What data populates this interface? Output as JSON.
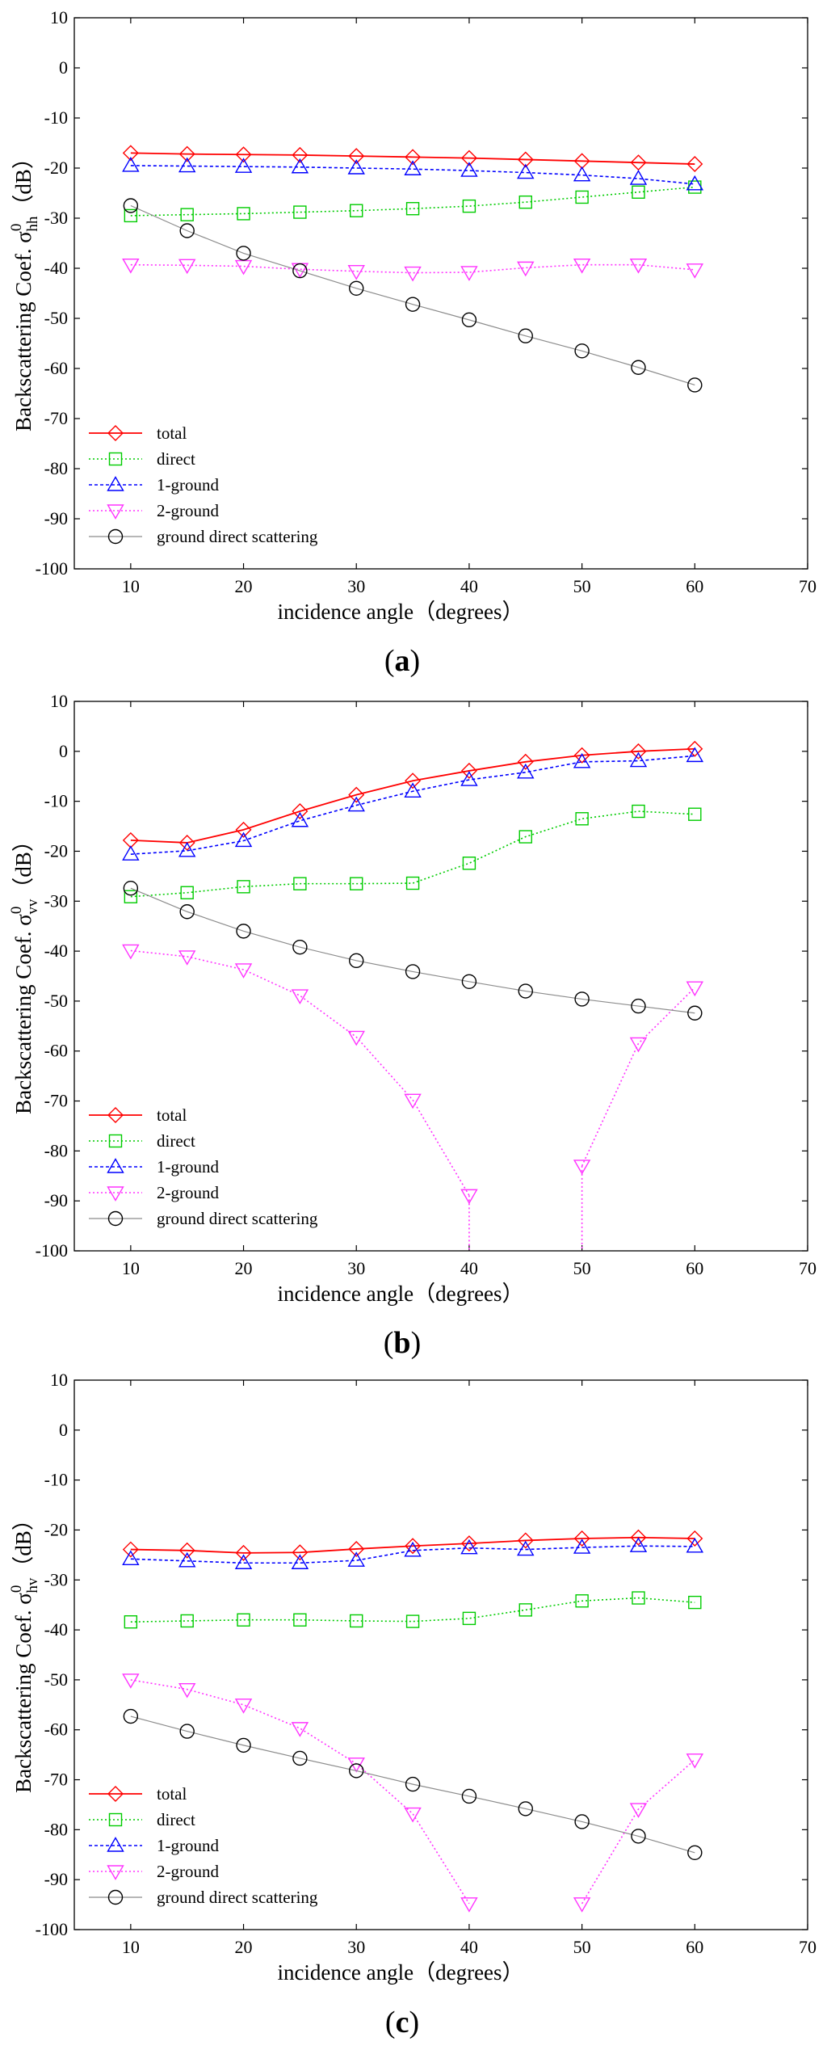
{
  "figure": {
    "panel_labels": [
      "a",
      "b",
      "c"
    ],
    "panel_label_open": "(",
    "panel_label_close": ")"
  },
  "chart_data": [
    {
      "type": "line",
      "panel": "a",
      "xlabel": "incidence angle（degrees）",
      "ylabel_prefix": "Backscattering Coef. σ",
      "ylabel_sup": "0",
      "ylabel_sub": "hh",
      "ylabel_suffix": "（dB）",
      "xlim": [
        5,
        70
      ],
      "ylim": [
        -100,
        10
      ],
      "xticks": [
        10,
        20,
        30,
        40,
        50,
        60,
        70
      ],
      "yticks": [
        10,
        0,
        -10,
        -20,
        -30,
        -40,
        -50,
        -60,
        -70,
        -80,
        -90,
        -100
      ],
      "legend_position": "lower-left",
      "x": [
        10,
        15,
        20,
        25,
        30,
        35,
        40,
        45,
        50,
        55,
        60
      ],
      "series": [
        {
          "name": "total",
          "color": "#ff0000",
          "marker": "diamond",
          "dash": "solid",
          "values": [
            -17,
            -17.2,
            -17.3,
            -17.4,
            -17.6,
            -17.8,
            -18,
            -18.3,
            -18.6,
            -18.9,
            -19.2
          ]
        },
        {
          "name": "direct",
          "color": "#00cc00",
          "marker": "square",
          "dash": "dotted",
          "values": [
            -29.5,
            -29.3,
            -29.1,
            -28.8,
            -28.5,
            -28.1,
            -27.6,
            -26.8,
            -25.8,
            -24.8,
            -23.8
          ]
        },
        {
          "name": "1-ground",
          "color": "#0000ff",
          "marker": "triangle-up",
          "dash": "dashed",
          "values": [
            -19.5,
            -19.6,
            -19.7,
            -19.8,
            -20,
            -20.2,
            -20.5,
            -20.9,
            -21.4,
            -22.1,
            -23.2
          ]
        },
        {
          "name": "2-ground",
          "color": "#ff33ff",
          "marker": "triangle-down",
          "dash": "dotted",
          "values": [
            -39.3,
            -39.4,
            -39.6,
            -40.2,
            -40.6,
            -40.9,
            -40.8,
            -39.9,
            -39.3,
            -39.3,
            -40.3
          ]
        },
        {
          "name": "ground direct scattering",
          "color": "#000000",
          "marker": "circle",
          "dash": "solid-gray",
          "values": [
            -27.5,
            -32.5,
            -37,
            -40.5,
            -44,
            -47.2,
            -50.3,
            -53.5,
            -56.5,
            -59.8,
            -63.3
          ]
        }
      ]
    },
    {
      "type": "line",
      "panel": "b",
      "xlabel": "incidence angle（degrees）",
      "ylabel_prefix": "Backscattering Coef. σ",
      "ylabel_sup": "0",
      "ylabel_sub": "vv",
      "ylabel_suffix": "（dB）",
      "xlim": [
        5,
        70
      ],
      "ylim": [
        -100,
        10
      ],
      "xticks": [
        10,
        20,
        30,
        40,
        50,
        60,
        70
      ],
      "yticks": [
        10,
        0,
        -10,
        -20,
        -30,
        -40,
        -50,
        -60,
        -70,
        -80,
        -90,
        -100
      ],
      "legend_position": "lower-left",
      "x": [
        10,
        15,
        20,
        25,
        30,
        35,
        40,
        45,
        50,
        55,
        60
      ],
      "series": [
        {
          "name": "total",
          "color": "#ff0000",
          "marker": "diamond",
          "dash": "solid",
          "values": [
            -17.8,
            -18.3,
            -15.7,
            -12,
            -8.7,
            -5.9,
            -3.9,
            -2.1,
            -0.8,
            0,
            0.5
          ]
        },
        {
          "name": "direct",
          "color": "#00cc00",
          "marker": "square",
          "dash": "dotted",
          "values": [
            -29.1,
            -28.3,
            -27.1,
            -26.5,
            -26.5,
            -26.4,
            -22.4,
            -17.1,
            -13.5,
            -12,
            -12.6
          ]
        },
        {
          "name": "1-ground",
          "color": "#0000ff",
          "marker": "triangle-up",
          "dash": "dashed",
          "values": [
            -20.6,
            -19.9,
            -17.9,
            -13.9,
            -10.8,
            -8.0,
            -5.7,
            -4.2,
            -2.1,
            -1.9,
            -0.9
          ]
        },
        {
          "name": "2-ground",
          "color": "#ff33ff",
          "marker": "triangle-down",
          "dash": "dotted",
          "values": [
            -39.9,
            -41.1,
            -43.7,
            -48.9,
            -57.2,
            -69.8,
            -88.9,
            null,
            -83,
            -58.5,
            -47.3
          ],
          "dropouts": [
            40,
            50
          ]
        },
        {
          "name": "ground direct scattering",
          "color": "#000000",
          "marker": "circle",
          "dash": "solid-gray",
          "values": [
            -27.4,
            -32.1,
            -36,
            -39.2,
            -41.9,
            -44.1,
            -46.1,
            -48,
            -49.6,
            -51,
            -52.4
          ]
        }
      ]
    },
    {
      "type": "line",
      "panel": "c",
      "xlabel": "incidence angle（degrees）",
      "ylabel_prefix": "Backscattering Coef. σ",
      "ylabel_sup": "0",
      "ylabel_sub": "hv",
      "ylabel_suffix": "（dB）",
      "xlim": [
        5,
        70
      ],
      "ylim": [
        -100,
        10
      ],
      "xticks": [
        10,
        20,
        30,
        40,
        50,
        60,
        70
      ],
      "yticks": [
        10,
        0,
        -10,
        -20,
        -30,
        -40,
        -50,
        -60,
        -70,
        -80,
        -90,
        -100
      ],
      "legend_position": "lower-left",
      "x": [
        10,
        15,
        20,
        25,
        30,
        35,
        40,
        45,
        50,
        55,
        60
      ],
      "series": [
        {
          "name": "total",
          "color": "#ff0000",
          "marker": "diamond",
          "dash": "solid",
          "values": [
            -23.9,
            -24.1,
            -24.6,
            -24.5,
            -23.8,
            -23.2,
            -22.7,
            -22.1,
            -21.7,
            -21.5,
            -21.7
          ]
        },
        {
          "name": "direct",
          "color": "#00cc00",
          "marker": "square",
          "dash": "dotted",
          "values": [
            -38.4,
            -38.2,
            -38,
            -38,
            -38.2,
            -38.3,
            -37.7,
            -36,
            -34.2,
            -33.6,
            -34.5
          ]
        },
        {
          "name": "1-ground",
          "color": "#0000ff",
          "marker": "triangle-up",
          "dash": "dashed",
          "values": [
            -25.8,
            -26.2,
            -26.6,
            -26.6,
            -26.1,
            -24.1,
            -23.6,
            -23.9,
            -23.5,
            -23.2,
            -23.3
          ]
        },
        {
          "name": "2-ground",
          "color": "#ff33ff",
          "marker": "triangle-down",
          "dash": "dotted",
          "values": [
            -50,
            -51.9,
            -55,
            -59.7,
            -66.8,
            -76.8,
            -94.8,
            null,
            -94.8,
            -75.9,
            -66
          ]
        },
        {
          "name": "ground direct scattering",
          "color": "#000000",
          "marker": "circle",
          "dash": "solid-gray",
          "values": [
            -57.3,
            -60.3,
            -63.1,
            -65.7,
            -68.2,
            -70.9,
            -73.3,
            -75.8,
            -78.4,
            -81.3,
            -84.6
          ]
        }
      ]
    }
  ]
}
